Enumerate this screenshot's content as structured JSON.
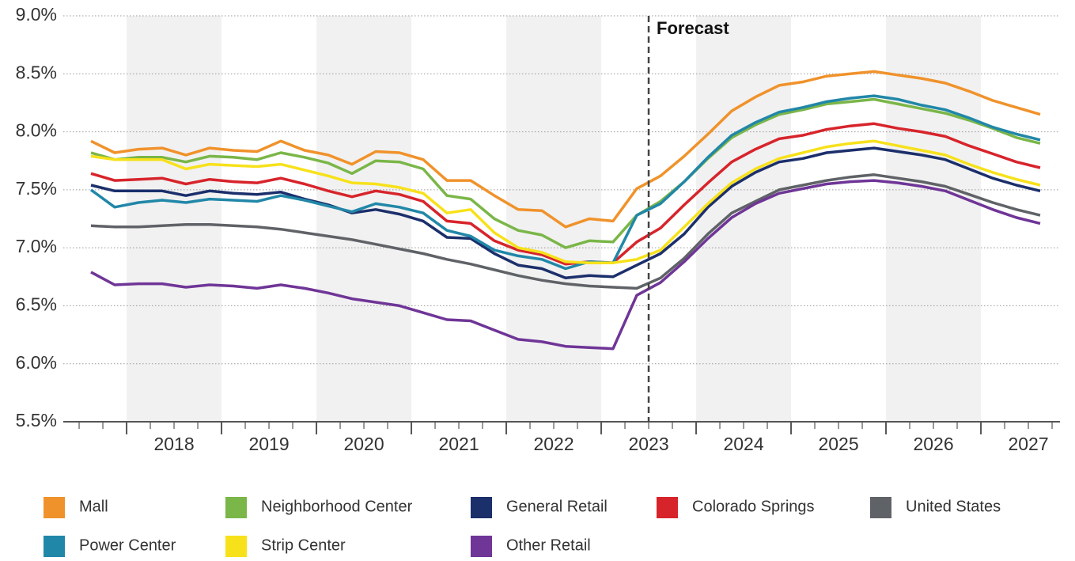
{
  "chart_data": {
    "type": "line",
    "annotation": "Forecast",
    "forecast_x": 2023.5,
    "x": [
      2017.625,
      2017.875,
      2018.125,
      2018.375,
      2018.625,
      2018.875,
      2019.125,
      2019.375,
      2019.625,
      2019.875,
      2020.125,
      2020.375,
      2020.625,
      2020.875,
      2021.125,
      2021.375,
      2021.625,
      2021.875,
      2022.125,
      2022.375,
      2022.625,
      2022.875,
      2023.125,
      2023.375,
      2023.625,
      2023.875,
      2024.125,
      2024.375,
      2024.625,
      2024.875,
      2025.125,
      2025.375,
      2025.625,
      2025.875,
      2026.125,
      2026.375,
      2026.625,
      2026.875,
      2027.125,
      2027.375,
      2027.625
    ],
    "xlim": [
      2017.333,
      2027.833
    ],
    "xticks": [
      {
        "value": 2018.5,
        "label": "2018"
      },
      {
        "value": 2019.5,
        "label": "2019"
      },
      {
        "value": 2020.5,
        "label": "2020"
      },
      {
        "value": 2021.5,
        "label": "2021"
      },
      {
        "value": 2022.5,
        "label": "2022"
      },
      {
        "value": 2023.5,
        "label": "2023"
      },
      {
        "value": 2024.5,
        "label": "2024"
      },
      {
        "value": 2025.5,
        "label": "2025"
      },
      {
        "value": 2026.5,
        "label": "2026"
      },
      {
        "value": 2027.5,
        "label": "2027"
      }
    ],
    "ylim": [
      5.5,
      9.0
    ],
    "yticks": [
      {
        "value": 5.5,
        "label": "5.5%"
      },
      {
        "value": 6.0,
        "label": "6.0%"
      },
      {
        "value": 6.5,
        "label": "6.5%"
      },
      {
        "value": 7.0,
        "label": "7.0%"
      },
      {
        "value": 7.5,
        "label": "7.5%"
      },
      {
        "value": 8.0,
        "label": "8.0%"
      },
      {
        "value": 8.5,
        "label": "8.5%"
      },
      {
        "value": 9.0,
        "label": "9.0%"
      }
    ],
    "grid": true,
    "series": [
      {
        "name": "Mall",
        "color": "#f0922b",
        "values": [
          7.92,
          7.82,
          7.85,
          7.86,
          7.8,
          7.86,
          7.84,
          7.83,
          7.92,
          7.84,
          7.8,
          7.72,
          7.83,
          7.82,
          7.76,
          7.58,
          7.58,
          7.45,
          7.33,
          7.32,
          7.18,
          7.25,
          7.23,
          7.51,
          7.62,
          7.79,
          7.98,
          8.18,
          8.3,
          8.4,
          8.43,
          8.48,
          8.5,
          8.52,
          8.49,
          8.46,
          8.42,
          8.35,
          8.27,
          8.21,
          8.15
        ]
      },
      {
        "name": "Neighborhood Center",
        "color": "#7ab648",
        "values": [
          7.82,
          7.76,
          7.78,
          7.78,
          7.74,
          7.79,
          7.78,
          7.76,
          7.82,
          7.78,
          7.73,
          7.64,
          7.75,
          7.74,
          7.68,
          7.45,
          7.42,
          7.25,
          7.15,
          7.11,
          7.0,
          7.06,
          7.05,
          7.28,
          7.4,
          7.57,
          7.77,
          7.95,
          8.06,
          8.15,
          8.19,
          8.24,
          8.26,
          8.28,
          8.24,
          8.2,
          8.16,
          8.1,
          8.03,
          7.95,
          7.9
        ]
      },
      {
        "name": "General Retail",
        "color": "#1b2f6b",
        "values": [
          7.54,
          7.49,
          7.49,
          7.49,
          7.45,
          7.49,
          7.47,
          7.46,
          7.48,
          7.42,
          7.37,
          7.3,
          7.33,
          7.29,
          7.23,
          7.09,
          7.08,
          6.95,
          6.85,
          6.82,
          6.74,
          6.76,
          6.75,
          6.85,
          6.95,
          7.12,
          7.35,
          7.53,
          7.65,
          7.74,
          7.77,
          7.82,
          7.84,
          7.86,
          7.83,
          7.8,
          7.76,
          7.68,
          7.6,
          7.54,
          7.49
        ]
      },
      {
        "name": "Colorado Springs",
        "color": "#d7242b",
        "values": [
          7.64,
          7.58,
          7.59,
          7.6,
          7.55,
          7.59,
          7.57,
          7.56,
          7.6,
          7.55,
          7.49,
          7.44,
          7.49,
          7.46,
          7.4,
          7.23,
          7.21,
          7.06,
          6.98,
          6.94,
          6.86,
          6.88,
          6.87,
          7.05,
          7.17,
          7.37,
          7.56,
          7.74,
          7.85,
          7.94,
          7.97,
          8.02,
          8.05,
          8.07,
          8.03,
          8.0,
          7.96,
          7.88,
          7.81,
          7.74,
          7.69
        ]
      },
      {
        "name": "United States",
        "color": "#5f6266",
        "values": [
          7.19,
          7.18,
          7.18,
          7.19,
          7.2,
          7.2,
          7.19,
          7.18,
          7.16,
          7.13,
          7.1,
          7.07,
          7.03,
          6.99,
          6.95,
          6.9,
          6.86,
          6.81,
          6.76,
          6.72,
          6.69,
          6.67,
          6.66,
          6.65,
          6.74,
          6.91,
          7.12,
          7.3,
          7.4,
          7.5,
          7.54,
          7.58,
          7.61,
          7.63,
          7.6,
          7.57,
          7.53,
          7.46,
          7.39,
          7.33,
          7.28
        ]
      },
      {
        "name": "Power Center",
        "color": "#2187a8",
        "values": [
          7.5,
          7.35,
          7.39,
          7.41,
          7.39,
          7.42,
          7.41,
          7.4,
          7.45,
          7.41,
          7.36,
          7.31,
          7.38,
          7.35,
          7.3,
          7.15,
          7.1,
          6.98,
          6.93,
          6.9,
          6.82,
          6.88,
          6.87,
          7.28,
          7.38,
          7.57,
          7.78,
          7.97,
          8.08,
          8.17,
          8.21,
          8.26,
          8.29,
          8.31,
          8.28,
          8.23,
          8.19,
          8.12,
          8.04,
          7.98,
          7.93
        ]
      },
      {
        "name": "Strip Center",
        "color": "#f7e11b",
        "values": [
          7.79,
          7.76,
          7.76,
          7.76,
          7.68,
          7.72,
          7.71,
          7.7,
          7.72,
          7.67,
          7.62,
          7.56,
          7.55,
          7.52,
          7.47,
          7.3,
          7.33,
          7.13,
          7.0,
          6.96,
          6.88,
          6.87,
          6.87,
          6.9,
          6.98,
          7.18,
          7.38,
          7.56,
          7.68,
          7.77,
          7.82,
          7.87,
          7.9,
          7.92,
          7.88,
          7.84,
          7.8,
          7.72,
          7.65,
          7.59,
          7.54
        ]
      },
      {
        "name": "Other Retail",
        "color": "#6f3597",
        "values": [
          6.79,
          6.68,
          6.69,
          6.69,
          6.66,
          6.68,
          6.67,
          6.65,
          6.68,
          6.65,
          6.61,
          6.56,
          6.53,
          6.5,
          6.44,
          6.38,
          6.37,
          6.29,
          6.21,
          6.19,
          6.15,
          6.14,
          6.13,
          6.59,
          6.7,
          6.88,
          7.08,
          7.26,
          7.38,
          7.47,
          7.51,
          7.55,
          7.57,
          7.58,
          7.56,
          7.53,
          7.49,
          7.41,
          7.33,
          7.26,
          7.21
        ]
      }
    ]
  }
}
